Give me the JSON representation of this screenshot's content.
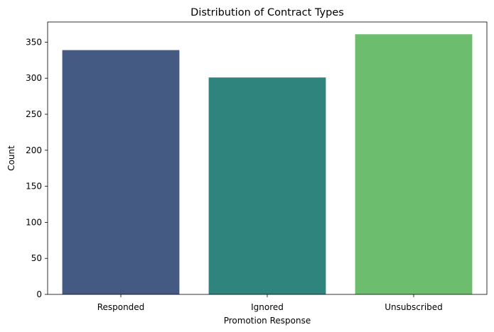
{
  "chart_data": {
    "type": "bar",
    "title": "Distribution of Contract Types",
    "xlabel": "Promotion Response",
    "ylabel": "Count",
    "categories": [
      "Responded",
      "Ignored",
      "Unsubscribed"
    ],
    "values": [
      339,
      301,
      361
    ],
    "colors": [
      "#455a83",
      "#2f847e",
      "#6cbe6e"
    ],
    "ylim": [
      0,
      378
    ],
    "yticks": [
      0,
      50,
      100,
      150,
      200,
      250,
      300,
      350
    ],
    "grid": false,
    "legend": "none"
  }
}
